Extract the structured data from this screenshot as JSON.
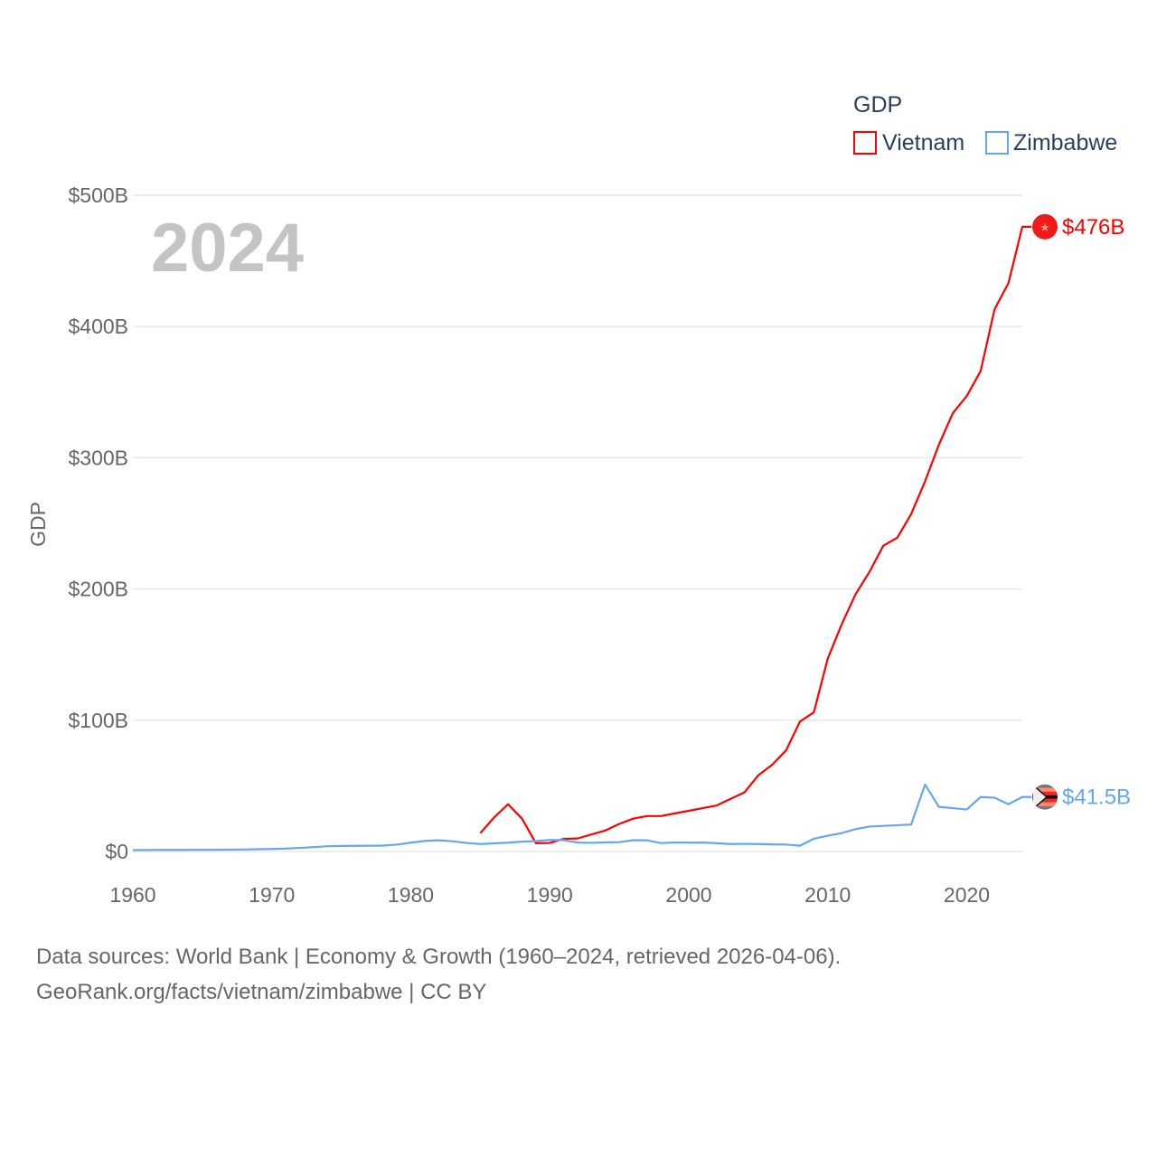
{
  "chart_data": {
    "type": "line",
    "title": "GDP",
    "year_label": "2024",
    "ylabel": "GDP",
    "xlabel": "",
    "xlim": [
      1960,
      2024
    ],
    "ylim": [
      0,
      500
    ],
    "x_ticks": [
      "1960",
      "1970",
      "1980",
      "1990",
      "2000",
      "2010",
      "2020"
    ],
    "y_ticks": [
      {
        "v": 0,
        "label": "$0"
      },
      {
        "v": 100,
        "label": "$100B"
      },
      {
        "v": 200,
        "label": "$200B"
      },
      {
        "v": 300,
        "label": "$300B"
      },
      {
        "v": 400,
        "label": "$400B"
      },
      {
        "v": 500,
        "label": "$500B"
      }
    ],
    "grid": true,
    "legend_position": "top-right",
    "series": [
      {
        "name": "Vietnam",
        "color": "#ff0000",
        "end_label": "$476B",
        "start_year": 1985,
        "values": [
          14,
          26,
          36,
          25,
          6.3,
          6.5,
          9.6,
          9.9,
          13,
          16,
          21,
          25,
          27,
          27,
          29,
          31,
          33,
          35,
          40,
          45,
          58,
          66,
          77,
          99,
          106,
          147,
          173,
          196,
          213,
          233,
          239,
          257,
          282,
          310,
          334,
          347,
          366,
          413,
          433,
          476
        ]
      },
      {
        "name": "Zimbabwe",
        "color": "#64a8ec",
        "end_label": "$41.5B",
        "start_year": 1960,
        "values": [
          1.05,
          1.1,
          1.2,
          1.2,
          1.2,
          1.3,
          1.3,
          1.4,
          1.5,
          1.7,
          1.9,
          2.2,
          2.7,
          3.3,
          4.0,
          4.2,
          4.3,
          4.4,
          4.5,
          5.2,
          6.7,
          8.0,
          8.5,
          7.8,
          6.5,
          5.7,
          6.2,
          6.7,
          7.5,
          7.9,
          8.8,
          8.6,
          6.8,
          6.6,
          6.9,
          7.1,
          8.6,
          8.5,
          6.4,
          6.9,
          6.7,
          6.8,
          6.3,
          5.7,
          5.8,
          5.7,
          5.4,
          5.3,
          4.4,
          9.7,
          12,
          14,
          17,
          19,
          19.5,
          20,
          20.5,
          51,
          34,
          33,
          32,
          41.5,
          41,
          36,
          41.5
        ]
      }
    ]
  },
  "footer": {
    "line1": "Data sources: World Bank | Economy & Growth (1960–2024, retrieved 2026-04-06).",
    "line2": "GeoRank.org/facts/vietnam/zimbabwe | CC BY"
  }
}
